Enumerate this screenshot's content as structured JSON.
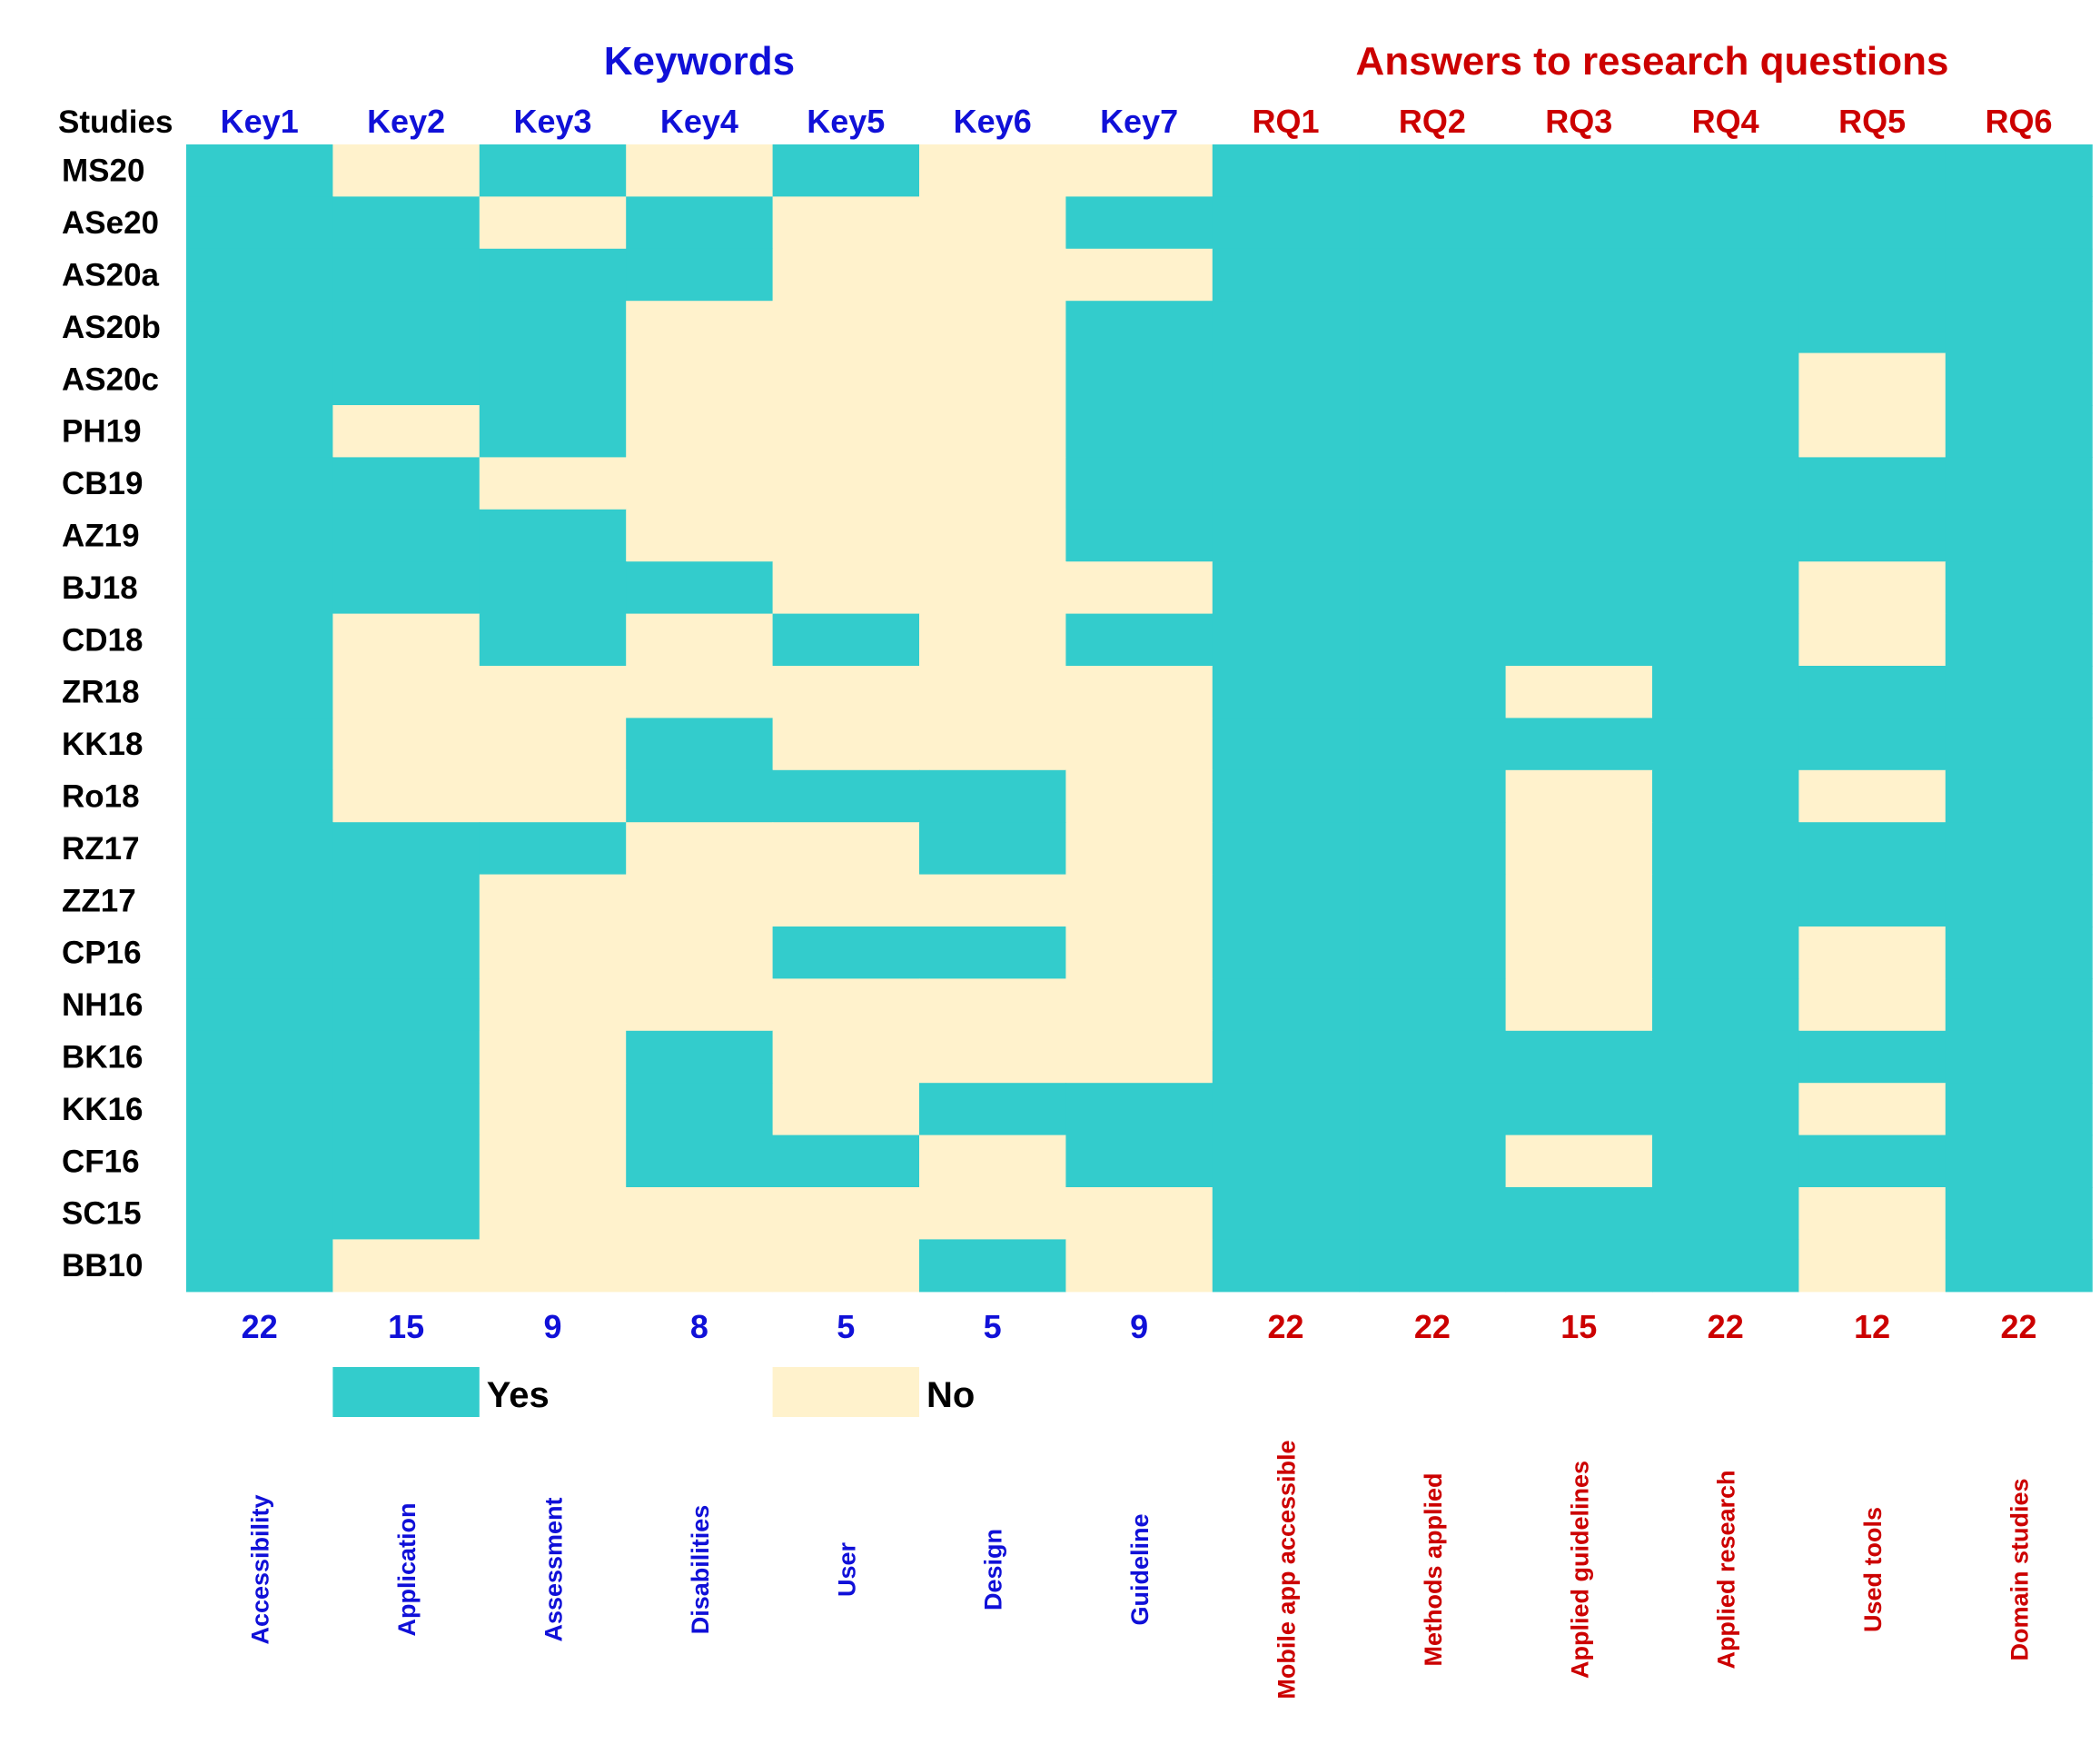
{
  "chart_data": {
    "type": "heatmap",
    "studies_label": "Studies",
    "group_titles": [
      {
        "label": "Keywords",
        "span": [
          0,
          6
        ],
        "color": "#1010d8"
      },
      {
        "label": "Answers to research questions",
        "span": [
          7,
          12
        ],
        "color": "#cc0000"
      }
    ],
    "columns": [
      {
        "label": "Key1",
        "desc": "Accessibility",
        "count": "22",
        "color": "#1010d8"
      },
      {
        "label": "Key2",
        "desc": "Application",
        "count": "15",
        "color": "#1010d8"
      },
      {
        "label": "Key3",
        "desc": "Assessment",
        "count": "9",
        "color": "#1010d8"
      },
      {
        "label": "Key4",
        "desc": "Disabilities",
        "count": "8",
        "color": "#1010d8"
      },
      {
        "label": "Key5",
        "desc": "User",
        "count": "5",
        "color": "#1010d8"
      },
      {
        "label": "Key6",
        "desc": "Design",
        "count": "5",
        "color": "#1010d8"
      },
      {
        "label": "Key7",
        "desc": "Guideline",
        "count": "9",
        "color": "#1010d8"
      },
      {
        "label": "RQ1",
        "desc": "Mobile app accessible",
        "count": "22",
        "color": "#cc0000"
      },
      {
        "label": "RQ2",
        "desc": "Methods applied",
        "count": "22",
        "color": "#cc0000"
      },
      {
        "label": "RQ3",
        "desc": "Applied guidelines",
        "count": "15",
        "color": "#cc0000"
      },
      {
        "label": "RQ4",
        "desc": "Applied research",
        "count": "22",
        "color": "#cc0000"
      },
      {
        "label": "RQ5",
        "desc": "Used tools",
        "count": "12",
        "color": "#cc0000"
      },
      {
        "label": "RQ6",
        "desc": "Domain studies",
        "count": "22",
        "color": "#cc0000"
      }
    ],
    "rows": [
      "MS20",
      "ASe20",
      "AS20a",
      "AS20b",
      "AS20c",
      "PH19",
      "CB19",
      "AZ19",
      "BJ18",
      "CD18",
      "ZR18",
      "KK18",
      "Ro18",
      "RZ17",
      "ZZ17",
      "CP16",
      "NH16",
      "BK16",
      "KK16",
      "CF16",
      "SC15",
      "BB10"
    ],
    "values": [
      [
        1,
        0,
        1,
        0,
        1,
        0,
        0,
        1,
        1,
        1,
        1,
        1,
        1
      ],
      [
        1,
        1,
        0,
        1,
        0,
        0,
        1,
        1,
        1,
        1,
        1,
        1,
        1
      ],
      [
        1,
        1,
        1,
        1,
        0,
        0,
        0,
        1,
        1,
        1,
        1,
        1,
        1
      ],
      [
        1,
        1,
        1,
        0,
        0,
        0,
        1,
        1,
        1,
        1,
        1,
        1,
        1
      ],
      [
        1,
        1,
        1,
        0,
        0,
        0,
        1,
        1,
        1,
        1,
        1,
        0,
        1
      ],
      [
        1,
        0,
        1,
        0,
        0,
        0,
        1,
        1,
        1,
        1,
        1,
        0,
        1
      ],
      [
        1,
        1,
        0,
        0,
        0,
        0,
        1,
        1,
        1,
        1,
        1,
        1,
        1
      ],
      [
        1,
        1,
        1,
        0,
        0,
        0,
        1,
        1,
        1,
        1,
        1,
        1,
        1
      ],
      [
        1,
        1,
        1,
        1,
        0,
        0,
        0,
        1,
        1,
        1,
        1,
        0,
        1
      ],
      [
        1,
        0,
        1,
        0,
        1,
        0,
        1,
        1,
        1,
        1,
        1,
        0,
        1
      ],
      [
        1,
        0,
        0,
        0,
        0,
        0,
        0,
        1,
        1,
        0,
        1,
        1,
        1
      ],
      [
        1,
        0,
        0,
        1,
        0,
        0,
        0,
        1,
        1,
        1,
        1,
        1,
        1
      ],
      [
        1,
        0,
        0,
        1,
        1,
        1,
        0,
        1,
        1,
        0,
        1,
        0,
        1
      ],
      [
        1,
        1,
        1,
        0,
        0,
        1,
        0,
        1,
        1,
        0,
        1,
        1,
        1
      ],
      [
        1,
        1,
        0,
        0,
        0,
        0,
        0,
        1,
        1,
        0,
        1,
        1,
        1
      ],
      [
        1,
        1,
        0,
        0,
        1,
        1,
        0,
        1,
        1,
        0,
        1,
        0,
        1
      ],
      [
        1,
        1,
        0,
        0,
        0,
        0,
        0,
        1,
        1,
        0,
        1,
        0,
        1
      ],
      [
        1,
        1,
        0,
        1,
        0,
        0,
        0,
        1,
        1,
        1,
        1,
        1,
        1
      ],
      [
        1,
        1,
        0,
        1,
        0,
        1,
        1,
        1,
        1,
        1,
        1,
        0,
        1
      ],
      [
        1,
        1,
        0,
        1,
        1,
        0,
        1,
        1,
        1,
        0,
        1,
        1,
        1
      ],
      [
        1,
        1,
        0,
        0,
        0,
        0,
        0,
        1,
        1,
        1,
        1,
        0,
        1
      ],
      [
        1,
        0,
        0,
        0,
        0,
        1,
        0,
        1,
        1,
        1,
        1,
        0,
        1
      ]
    ],
    "legend": [
      {
        "label": "Yes",
        "value": 1,
        "color": "#33cccc"
      },
      {
        "label": "No",
        "value": 0,
        "color": "#fff2cc"
      }
    ]
  }
}
